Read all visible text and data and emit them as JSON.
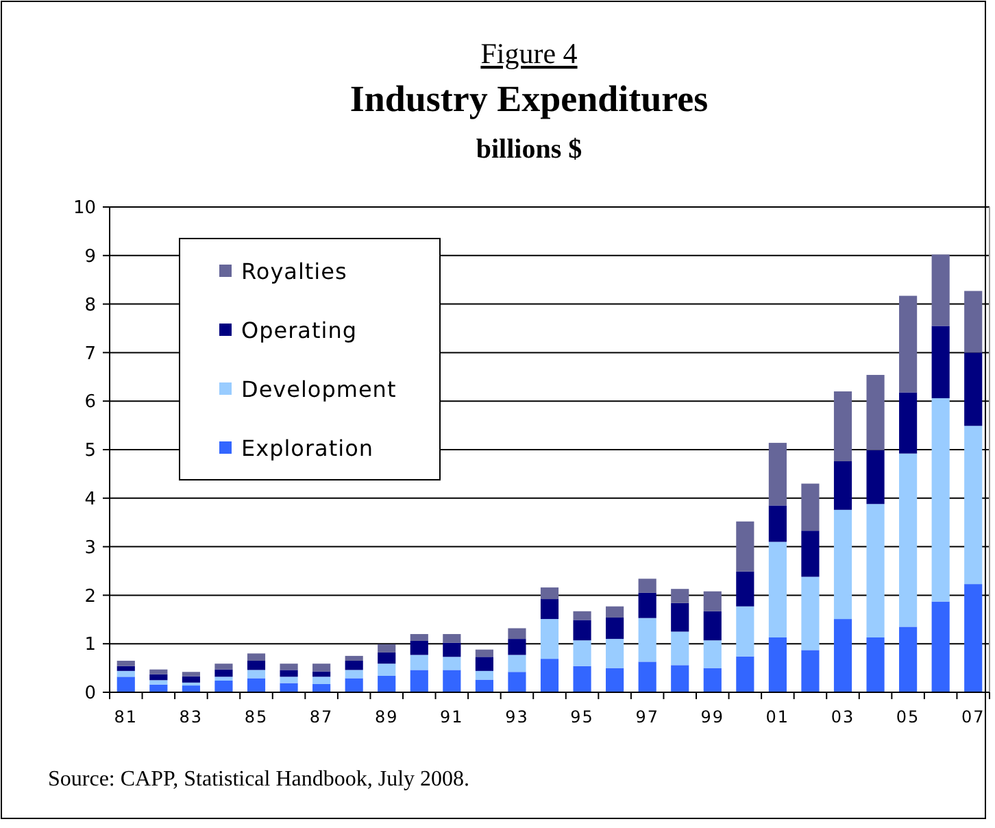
{
  "chart_data": {
    "type": "bar",
    "stacked": true,
    "title": "Figure 4",
    "subtitle": "Industry Expenditures",
    "ylabel": "billions $",
    "categories": [
      "81",
      null,
      "83",
      null,
      "85",
      null,
      "87",
      null,
      "89",
      null,
      "91",
      null,
      "93",
      null,
      "95",
      null,
      "97",
      null,
      "99",
      null,
      "01",
      null,
      "03",
      null,
      "05",
      null,
      "07"
    ],
    "series": [
      {
        "name": "Exploration",
        "color": "#3366ff",
        "values": [
          0.32,
          0.16,
          0.14,
          0.24,
          0.29,
          0.19,
          0.17,
          0.29,
          0.34,
          0.46,
          0.46,
          0.26,
          0.42,
          0.69,
          0.54,
          0.5,
          0.63,
          0.56,
          0.5,
          0.74,
          1.13,
          0.87,
          1.51,
          1.13,
          1.35,
          1.87,
          2.23
        ]
      },
      {
        "name": "Development",
        "color": "#99ccff",
        "values": [
          0.12,
          0.09,
          0.06,
          0.08,
          0.17,
          0.13,
          0.15,
          0.17,
          0.25,
          0.31,
          0.27,
          0.18,
          0.35,
          0.82,
          0.53,
          0.6,
          0.9,
          0.69,
          0.57,
          1.03,
          1.97,
          1.51,
          2.25,
          2.75,
          3.57,
          4.19,
          3.26
        ]
      },
      {
        "name": "Operating",
        "color": "#000080",
        "values": [
          0.1,
          0.12,
          0.13,
          0.15,
          0.19,
          0.14,
          0.11,
          0.19,
          0.23,
          0.29,
          0.29,
          0.29,
          0.33,
          0.41,
          0.42,
          0.44,
          0.52,
          0.59,
          0.6,
          0.72,
          0.75,
          0.95,
          1.0,
          1.11,
          1.26,
          1.49,
          1.51
        ]
      },
      {
        "name": "Royalties",
        "color": "#666699",
        "values": [
          0.11,
          0.1,
          0.09,
          0.12,
          0.15,
          0.13,
          0.16,
          0.1,
          0.17,
          0.14,
          0.18,
          0.15,
          0.22,
          0.24,
          0.18,
          0.23,
          0.29,
          0.29,
          0.41,
          1.03,
          1.29,
          0.97,
          1.44,
          1.55,
          1.99,
          1.47,
          1.27
        ]
      }
    ],
    "ylim": [
      0,
      10
    ],
    "yticks": [
      0,
      1,
      2,
      3,
      4,
      5,
      6,
      7,
      8,
      9,
      10
    ],
    "grid": "y",
    "legend": "top left",
    "annotations": [
      "Source:  CAPP, Statistical Handbook, July 2008."
    ]
  }
}
